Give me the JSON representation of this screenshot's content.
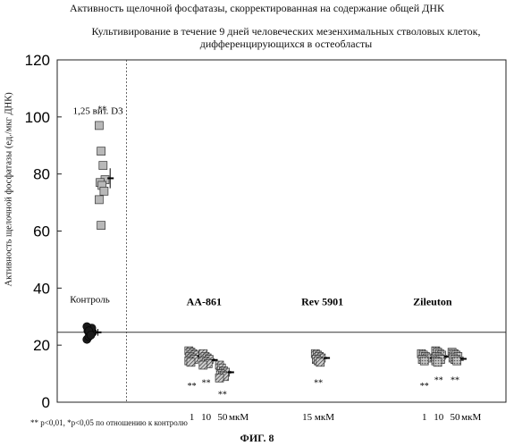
{
  "title": "Активность щелочной фосфатазы, скорректированная на содержание общей ДНК",
  "subtitle": "Культивирование в течение 9 дней человеческих мезенхимальных стволовых клеток, дифференцирующихся в остеобласты",
  "footnote": "** p<0,01, *p<0,05 по отношению к контролю",
  "figure_label": "ФИГ. 8",
  "chart_data": {
    "type": "scatter",
    "ylabel": "Активность щелочной фосфатазы (ед./мкг ДНК)",
    "xlabel": "",
    "ylim": [
      0,
      120
    ],
    "yticks": [
      0,
      20,
      40,
      60,
      80,
      100,
      120
    ],
    "grid": false,
    "reference_line": 24.5,
    "group_labels": [
      {
        "text": "1,25 вит. D3",
        "x": 10,
        "y": 101
      },
      {
        "text": "Контроль",
        "x": 8,
        "y": 35
      },
      {
        "text": "AA-861",
        "x": 36,
        "y": 34,
        "bold": true
      },
      {
        "text": "Rev 5901",
        "x": 65,
        "y": 34,
        "bold": true
      },
      {
        "text": "Zileuton",
        "x": 92,
        "y": 34,
        "bold": true
      }
    ],
    "dose_labels": [
      {
        "text": "1",
        "x": 33
      },
      {
        "text": "10",
        "x": 36.5
      },
      {
        "text": "50",
        "x": 40.5
      },
      {
        "text": "мкМ",
        "x": 44.5
      },
      {
        "text": "15 мкМ",
        "x": 64
      },
      {
        "text": "1",
        "x": 90
      },
      {
        "text": "10",
        "x": 93.5
      },
      {
        "text": "50",
        "x": 97.5
      },
      {
        "text": "мкМ",
        "x": 101.5
      }
    ],
    "series": [
      {
        "group": "Контроль",
        "x": 8,
        "marker": "circle",
        "fill": "#1a1a1a",
        "values": [
          22,
          23,
          24,
          24.5,
          25,
          25.5,
          26,
          26.5,
          25,
          23.5
        ],
        "mean": 24.5,
        "err": 1.2
      },
      {
        "group": "1,25 вит. D3",
        "x": 11,
        "marker": "square",
        "fill": "#b8b8b8",
        "values": [
          97,
          88,
          83,
          78,
          77,
          76,
          74,
          71,
          62
        ],
        "mean": 78.5,
        "err": 3.5,
        "sig": "**",
        "sig_y": 103
      },
      {
        "group": "AA-861",
        "dose": "1",
        "x": 33,
        "marker": "hatched",
        "fill": "#8c8c8c",
        "values": [
          18,
          17.5,
          17,
          16.5,
          16,
          15.5,
          15,
          14.5,
          14
        ],
        "mean": 16.2,
        "err": 0.6,
        "sig": "**",
        "sig_y": 6
      },
      {
        "group": "AA-861",
        "dose": "10",
        "x": 36.5,
        "marker": "hatched",
        "fill": "#8c8c8c",
        "values": [
          17,
          16,
          15.5,
          15,
          14.5,
          14,
          13.5,
          13
        ],
        "mean": 14.8,
        "err": 0.5,
        "sig": "**",
        "sig_y": 7
      },
      {
        "group": "AA-861",
        "dose": "50",
        "x": 40.5,
        "marker": "hatched",
        "fill": "#8c8c8c",
        "values": [
          13,
          12,
          11,
          10.5,
          10,
          9.5,
          9,
          8.5
        ],
        "mean": 10.5,
        "err": 0.5,
        "sig": "**",
        "sig_y": 3
      },
      {
        "group": "Rev 5901",
        "dose": "15",
        "x": 64,
        "marker": "hatched",
        "fill": "#8c8c8c",
        "values": [
          17,
          16.5,
          16,
          15.5,
          15,
          14.5,
          14
        ],
        "mean": 15.5,
        "err": 0.4,
        "sig": "**",
        "sig_y": 7
      },
      {
        "group": "Zileuton",
        "dose": "1",
        "x": 90,
        "marker": "dotted",
        "fill": "#a8a8a8",
        "values": [
          17,
          16.5,
          16,
          15.5,
          15,
          14.5
        ],
        "mean": 15.5,
        "err": 0.4,
        "sig": "**",
        "sig_y": 6
      },
      {
        "group": "Zileuton",
        "dose": "10",
        "x": 93.5,
        "marker": "dotted",
        "fill": "#a8a8a8",
        "values": [
          18,
          17.5,
          17,
          16.5,
          16,
          15.5,
          15,
          14.5,
          14
        ],
        "mean": 16,
        "err": 0.5,
        "sig": "**",
        "sig_y": 8
      },
      {
        "group": "Zileuton",
        "dose": "50",
        "x": 97.5,
        "marker": "dotted",
        "fill": "#a8a8a8",
        "values": [
          17.5,
          17,
          16.5,
          16,
          15.5,
          15,
          14.5
        ],
        "mean": 15.2,
        "err": 0.8,
        "sig": "**",
        "sig_y": 8
      }
    ]
  }
}
